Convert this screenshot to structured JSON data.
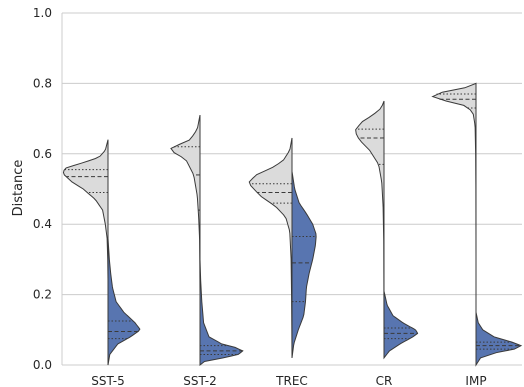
{
  "chart_data": {
    "type": "split-violin",
    "title": "",
    "xlabel": "",
    "ylabel": "Distance",
    "ylim": [
      0.0,
      1.0
    ],
    "yticks": [
      "0.0",
      "0.2",
      "0.4",
      "0.6",
      "0.8",
      "1.0"
    ],
    "grid": true,
    "categories": [
      "SST-5",
      "SST-2",
      "TREC",
      "CR",
      "IMP"
    ],
    "colors": {
      "left": "#dbdbdb",
      "right": "#5875b0"
    },
    "series": [
      {
        "side": "left",
        "violins": [
          {
            "ymin": 0.24,
            "ymax": 0.64,
            "density": [
              [
                0.24,
                0.0
              ],
              [
                0.3,
                0.006
              ],
              [
                0.36,
                0.02
              ],
              [
                0.4,
                0.06
              ],
              [
                0.44,
                0.12
              ],
              [
                0.47,
                0.28
              ],
              [
                0.5,
                0.55
              ],
              [
                0.52,
                0.8
              ],
              [
                0.54,
                0.97
              ],
              [
                0.55,
                1.0
              ],
              [
                0.56,
                0.93
              ],
              [
                0.575,
                0.55
              ],
              [
                0.59,
                0.2
              ],
              [
                0.61,
                0.06
              ],
              [
                0.64,
                0.0
              ]
            ],
            "quartiles": [
              0.49,
              0.535,
              0.555
            ]
          },
          {
            "ymin": 0.0,
            "ymax": 0.71,
            "density": [
              [
                0.0,
                0.0
              ],
              [
                0.2,
                0.0
              ],
              [
                0.28,
                0.004
              ],
              [
                0.36,
                0.01
              ],
              [
                0.42,
                0.03
              ],
              [
                0.48,
                0.06
              ],
              [
                0.54,
                0.14
              ],
              [
                0.58,
                0.3
              ],
              [
                0.6,
                0.5
              ],
              [
                0.61,
                0.72
              ],
              [
                0.62,
                0.58
              ],
              [
                0.64,
                0.22
              ],
              [
                0.67,
                0.06
              ],
              [
                0.71,
                0.0
              ]
            ],
            "quartiles": [
              0.44,
              0.54,
              0.62
            ]
          },
          {
            "ymin": 0.02,
            "ymax": 0.645,
            "density": [
              [
                0.02,
                0.0
              ],
              [
                0.1,
                0.004
              ],
              [
                0.2,
                0.01
              ],
              [
                0.3,
                0.02
              ],
              [
                0.38,
                0.05
              ],
              [
                0.42,
                0.14
              ],
              [
                0.45,
                0.36
              ],
              [
                0.48,
                0.7
              ],
              [
                0.51,
                0.92
              ],
              [
                0.52,
                0.95
              ],
              [
                0.54,
                0.8
              ],
              [
                0.56,
                0.45
              ],
              [
                0.58,
                0.2
              ],
              [
                0.61,
                0.05
              ],
              [
                0.645,
                0.0
              ]
            ],
            "quartiles": [
              0.46,
              0.49,
              0.515
            ]
          },
          {
            "ymin": 0.05,
            "ymax": 0.75,
            "density": [
              [
                0.05,
                0.0
              ],
              [
                0.2,
                0.002
              ],
              [
                0.35,
                0.006
              ],
              [
                0.45,
                0.02
              ],
              [
                0.52,
                0.05
              ],
              [
                0.57,
                0.12
              ],
              [
                0.61,
                0.32
              ],
              [
                0.64,
                0.55
              ],
              [
                0.665,
                0.65
              ],
              [
                0.69,
                0.5
              ],
              [
                0.71,
                0.25
              ],
              [
                0.73,
                0.06
              ],
              [
                0.75,
                0.0
              ]
            ],
            "quartiles": [
              0.57,
              0.645,
              0.67
            ]
          },
          {
            "ymin": 0.05,
            "ymax": 0.8,
            "density": [
              [
                0.05,
                0.0
              ],
              [
                0.3,
                0.0
              ],
              [
                0.5,
                0.003
              ],
              [
                0.6,
                0.008
              ],
              [
                0.68,
                0.02
              ],
              [
                0.72,
                0.07
              ],
              [
                0.74,
                0.3
              ],
              [
                0.755,
                0.85
              ],
              [
                0.765,
                1.0
              ],
              [
                0.775,
                0.75
              ],
              [
                0.785,
                0.3
              ],
              [
                0.8,
                0.0
              ]
            ],
            "quartiles": [
              0.73,
              0.755,
              0.77
            ]
          }
        ]
      },
      {
        "side": "right",
        "violins": [
          {
            "ymin": 0.0,
            "ymax": 0.36,
            "density": [
              [
                0.0,
                0.0
              ],
              [
                0.03,
                0.04
              ],
              [
                0.06,
                0.22
              ],
              [
                0.08,
                0.5
              ],
              [
                0.1,
                0.72
              ],
              [
                0.12,
                0.6
              ],
              [
                0.15,
                0.35
              ],
              [
                0.18,
                0.18
              ],
              [
                0.22,
                0.1
              ],
              [
                0.26,
                0.06
              ],
              [
                0.3,
                0.03
              ],
              [
                0.36,
                0.0
              ]
            ],
            "quartiles": [
              0.075,
              0.095,
              0.125
            ]
          },
          {
            "ymin": 0.0,
            "ymax": 0.3,
            "density": [
              [
                0.0,
                0.0
              ],
              [
                0.01,
                0.1
              ],
              [
                0.02,
                0.5
              ],
              [
                0.03,
                0.85
              ],
              [
                0.04,
                0.95
              ],
              [
                0.05,
                0.78
              ],
              [
                0.06,
                0.48
              ],
              [
                0.08,
                0.2
              ],
              [
                0.12,
                0.08
              ],
              [
                0.18,
                0.04
              ],
              [
                0.24,
                0.015
              ],
              [
                0.3,
                0.0
              ]
            ],
            "quartiles": [
              0.03,
              0.04,
              0.055
            ]
          },
          {
            "ymin": 0.02,
            "ymax": 0.55,
            "density": [
              [
                0.02,
                0.0
              ],
              [
                0.06,
                0.04
              ],
              [
                0.1,
                0.14
              ],
              [
                0.14,
                0.26
              ],
              [
                0.18,
                0.3
              ],
              [
                0.22,
                0.32
              ],
              [
                0.26,
                0.38
              ],
              [
                0.3,
                0.46
              ],
              [
                0.34,
                0.52
              ],
              [
                0.37,
                0.54
              ],
              [
                0.4,
                0.46
              ],
              [
                0.43,
                0.32
              ],
              [
                0.46,
                0.16
              ],
              [
                0.5,
                0.06
              ],
              [
                0.55,
                0.0
              ]
            ],
            "quartiles": [
              0.18,
              0.29,
              0.365
            ]
          },
          {
            "ymin": 0.02,
            "ymax": 0.21,
            "density": [
              [
                0.02,
                0.0
              ],
              [
                0.04,
                0.12
              ],
              [
                0.06,
                0.36
              ],
              [
                0.08,
                0.64
              ],
              [
                0.09,
                0.75
              ],
              [
                0.1,
                0.7
              ],
              [
                0.12,
                0.42
              ],
              [
                0.14,
                0.2
              ],
              [
                0.17,
                0.07
              ],
              [
                0.21,
                0.0
              ]
            ],
            "quartiles": [
              0.075,
              0.09,
              0.105
            ]
          },
          {
            "ymin": 0.0,
            "ymax": 0.15,
            "density": [
              [
                0.0,
                0.0
              ],
              [
                0.02,
                0.1
              ],
              [
                0.035,
                0.45
              ],
              [
                0.045,
                0.85
              ],
              [
                0.055,
                1.0
              ],
              [
                0.065,
                0.8
              ],
              [
                0.08,
                0.4
              ],
              [
                0.1,
                0.15
              ],
              [
                0.12,
                0.05
              ],
              [
                0.15,
                0.0
              ]
            ],
            "quartiles": [
              0.045,
              0.055,
              0.065
            ]
          }
        ]
      }
    ]
  }
}
